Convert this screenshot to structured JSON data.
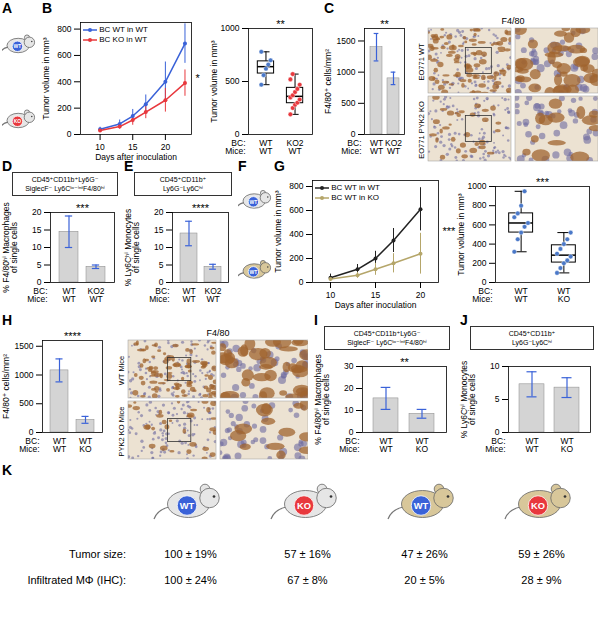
{
  "chart_data": [
    {
      "panel": "B",
      "type": "line",
      "x": [
        10,
        13,
        15,
        17,
        20,
        23
      ],
      "xlabel": "Days after inoculation",
      "ylabel": "Tumor volume in mm³",
      "xlim": [
        7,
        24
      ],
      "xticks": [
        10,
        15,
        20
      ],
      "ylim": [
        0,
        850
      ],
      "yticks": [
        0,
        200,
        400,
        600,
        800
      ],
      "legend": "top-left",
      "marker": "circle",
      "annotations": [
        "*"
      ],
      "series": [
        {
          "name": "BC WT in WT",
          "color": "#3a62d8",
          "values": [
            40,
            80,
            140,
            230,
            400,
            690
          ],
          "errors": [
            15,
            30,
            50,
            70,
            150,
            150
          ]
        },
        {
          "name": "BC KO in WT",
          "color": "#e8383d",
          "values": [
            30,
            60,
            110,
            170,
            260,
            390
          ],
          "errors": [
            10,
            20,
            40,
            50,
            90,
            100
          ]
        }
      ]
    },
    {
      "type": "box",
      "ylabel": "Tumor volume in mm³",
      "row_labels": [
        "BC:",
        "Mice:"
      ],
      "categories": [
        "WT",
        "KO2"
      ],
      "mice": [
        "WT",
        "WT"
      ],
      "points": [
        [
          470,
          560,
          620,
          660,
          700,
          780
        ],
        [
          190,
          250,
          280,
          300,
          330,
          350,
          370,
          400,
          430,
          470,
          520,
          570
        ]
      ],
      "colors": [
        "#4a78c8",
        "#e8383d"
      ],
      "ylim": [
        0,
        1000
      ],
      "yticks": [
        0,
        500,
        1000
      ],
      "annotations": [
        "**"
      ]
    },
    {
      "panel": "C",
      "type": "bar",
      "ylabel": "F4/80⁺ cells/mm²",
      "row_labels": [
        "BC:",
        "Mice:"
      ],
      "categories": [
        "WT",
        "KO2"
      ],
      "mice": [
        "WT",
        "WT"
      ],
      "values": [
        1400,
        900
      ],
      "errors": [
        220,
        100
      ],
      "color": "#d4d4d4",
      "ylim": [
        0,
        1700
      ],
      "yticks": [
        0,
        500,
        1000,
        1500
      ],
      "annotations": [
        "**"
      ]
    },
    {
      "panel": "D",
      "type": "bar",
      "title": "CD45⁺CD11b⁺Ly6G⁻\nSiglecF⁻ Ly6Cˡᵒ⁻ⁱⁿᵗF4/80ʰⁱ",
      "ylabel": "% F4/80ʰⁱ Macrophages\nof single cells",
      "row_labels": [
        "BC:",
        "Mice:"
      ],
      "categories": [
        "WT",
        "KO2"
      ],
      "mice": [
        "WT",
        "WT"
      ],
      "values": [
        14.5,
        4.5
      ],
      "errors": [
        4.5,
        0.5
      ],
      "color": "#d4d4d4",
      "ylim": [
        0,
        20
      ],
      "yticks": [
        0,
        5,
        10,
        15,
        20
      ],
      "annotations": [
        "***"
      ]
    },
    {
      "panel": "E",
      "type": "bar",
      "title": "CD45⁺CD11b⁺\nLy6G⁻Ly6Cʰⁱ",
      "ylabel": "% Ly6Cʰⁱ Monocytes\nof single cells",
      "row_labels": [
        "BC:",
        "Mice:"
      ],
      "categories": [
        "WT",
        "KO2"
      ],
      "mice": [
        "WT",
        "WT"
      ],
      "values": [
        14,
        4.5
      ],
      "errors": [
        3.5,
        0.7
      ],
      "color": "#d4d4d4",
      "ylim": [
        0,
        20
      ],
      "yticks": [
        0,
        5,
        10,
        15,
        20
      ],
      "annotations": [
        "****"
      ]
    },
    {
      "panel": "G",
      "type": "line",
      "x": [
        10,
        13,
        15,
        17,
        20
      ],
      "xlabel": "Days after inoculation",
      "ylabel": "Tumor volume in mm³",
      "xlim": [
        8,
        22
      ],
      "xticks": [
        10,
        15,
        20
      ],
      "ylim": [
        0,
        850
      ],
      "yticks": [
        0,
        200,
        400,
        600,
        800
      ],
      "legend": "top-left",
      "marker": "circle",
      "annotations": [
        "***"
      ],
      "series": [
        {
          "name": "BC WT in WT",
          "color": "#222222",
          "values": [
            40,
            110,
            200,
            350,
            610
          ],
          "errors": [
            30,
            40,
            60,
            100,
            180
          ]
        },
        {
          "name": "BC WT in KO",
          "color": "#b5a66a",
          "values": [
            30,
            60,
            110,
            160,
            240
          ],
          "errors": [
            20,
            25,
            50,
            80,
            170
          ]
        }
      ]
    },
    {
      "type": "box",
      "ylabel": "Tumor volume in mm³",
      "row_labels": [
        "BC:",
        "Mice:"
      ],
      "categories": [
        "WT",
        "WT"
      ],
      "mice": [
        "WT",
        "KO"
      ],
      "points": [
        [
          320,
          450,
          520,
          580,
          620,
          680,
          720,
          800,
          950
        ],
        [
          100,
          150,
          200,
          230,
          270,
          300,
          350,
          400,
          450,
          520
        ]
      ],
      "colors": [
        "#4a78c8",
        "#4a78c8"
      ],
      "ylim": [
        0,
        1000
      ],
      "yticks": [
        0,
        200,
        400,
        600,
        800,
        1000
      ],
      "annotations": [
        "***"
      ]
    },
    {
      "panel": "H",
      "type": "bar",
      "ylabel": "F4/80⁺ cells/mm²",
      "row_labels": [
        "BC:",
        "Mice:"
      ],
      "categories": [
        "WT",
        "WT"
      ],
      "mice": [
        "WT",
        "KO"
      ],
      "values": [
        1080,
        220
      ],
      "errors": [
        200,
        60
      ],
      "color": "#d4d4d4",
      "ylim": [
        0,
        1600
      ],
      "yticks": [
        0,
        500,
        1000,
        1500
      ],
      "annotations": [
        "****"
      ]
    },
    {
      "panel": "I",
      "type": "bar",
      "title": "CD45⁺CD11b⁺Ly6G⁻\nSiglecF⁻ Ly6Cˡᵒ⁻ⁱⁿᵗF4/80ʰⁱ",
      "ylabel": "% F4/80ʰⁱ Macrophages\nof single cells",
      "row_labels": [
        "BC:",
        "Mice:"
      ],
      "categories": [
        "WT",
        "WT"
      ],
      "mice": [
        "WT",
        "KO"
      ],
      "values": [
        15.5,
        8.5
      ],
      "errors": [
        5,
        2
      ],
      "color": "#d4d4d4",
      "ylim": [
        0,
        30
      ],
      "yticks": [
        0,
        10,
        20,
        30
      ],
      "annotations": [
        "**"
      ]
    },
    {
      "panel": "J",
      "type": "bar",
      "title": "CD45⁺CD11b⁺\nLy6G⁻Ly6Cʰⁱ",
      "ylabel": "% Ly6Cʰⁱ Monocytes\nof single cells",
      "row_labels": [
        "BC:",
        "Mice:"
      ],
      "categories": [
        "WT",
        "WT"
      ],
      "mice": [
        "WT",
        "KO"
      ],
      "values": [
        7.3,
        6.8
      ],
      "errors": [
        1.9,
        1.5
      ],
      "color": "#d4d4d4",
      "ylim": [
        0,
        10
      ],
      "yticks": [
        0,
        5,
        10
      ],
      "annotations": []
    }
  ],
  "mice_panels": [
    {
      "panel": "A",
      "mice": [
        {
          "tumor": "WT",
          "tumor_color": "#3a62d8",
          "mouse_color": "#e6e6e6"
        },
        {
          "tumor": "KO",
          "tumor_color": "#e8383d",
          "mouse_color": "#e6e6e6"
        }
      ]
    },
    {
      "panel": "F",
      "mice": [
        {
          "tumor": "WT",
          "tumor_color": "#3a62d8",
          "mouse_color": "#e6e6e6"
        },
        {
          "tumor": "WT",
          "tumor_color": "#3a62d8",
          "mouse_color": "#d8c79a"
        }
      ]
    }
  ],
  "images": [
    {
      "stain": "F4/80",
      "rows": [
        "EO771 WT",
        "EO771 PYK2 KO"
      ]
    },
    {
      "stain": "F4/80",
      "rows": [
        "WT Mice",
        "PYK2 KO Mice"
      ]
    }
  ],
  "table": {
    "panel": "K",
    "columns": [
      {
        "tumor": "WT",
        "tumor_color": "#3a62d8",
        "mouse_color": "#e6e6e6"
      },
      {
        "tumor": "KO",
        "tumor_color": "#e8383d",
        "mouse_color": "#e6e6e6"
      },
      {
        "tumor": "WT",
        "tumor_color": "#3a62d8",
        "mouse_color": "#d8c79a"
      },
      {
        "tumor": "KO",
        "tumor_color": "#e8383d",
        "mouse_color": "#d8c79a"
      }
    ],
    "rows": [
      {
        "label": "Tumor size:",
        "cells": [
          "100 ± 19%",
          "57 ± 16%",
          "47 ± 26%",
          "59 ± 26%"
        ]
      },
      {
        "label": "Infiltrated MΦ (IHC):",
        "cells": [
          "100 ± 24%",
          "67 ± 8%",
          "20 ± 5%",
          "28 ± 9%"
        ]
      }
    ]
  }
}
